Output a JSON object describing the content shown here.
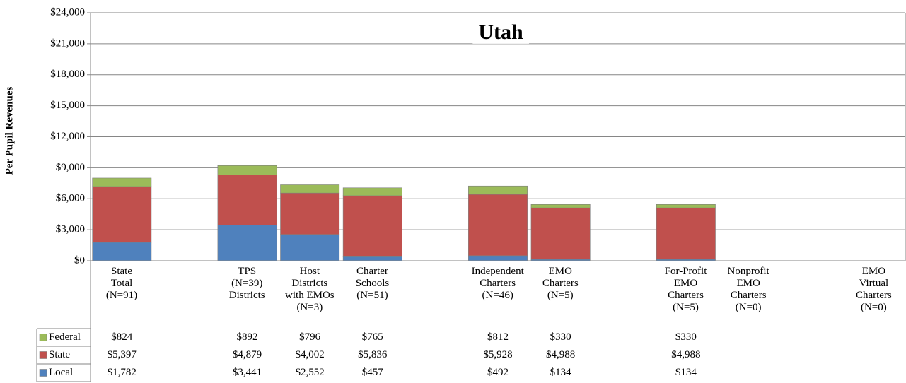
{
  "chart_data": {
    "type": "stacked_bar",
    "title": "Utah",
    "y_label": "Per Pupil Revenues",
    "categories": [
      "State\nTotal\n(N=91)",
      null,
      "TPS\n(N=39)\nDistricts",
      "Host\nDistricts\nwith EMOs\n(N=3)",
      "Charter\nSchools\n(N=51)",
      null,
      "Independent\nCharters\n(N=46)",
      "EMO\nCharters\n(N=5)",
      null,
      "For-Profit\nEMO\nCharters\n(N=5)",
      "Nonprofit\nEMO\nCharters\n(N=0)",
      null,
      "EMO\nVirtual\nCharters\n(N=0)"
    ],
    "series": [
      {
        "name": "Federal",
        "color": "#9bbb59",
        "values": [
          824,
          null,
          892,
          796,
          765,
          null,
          812,
          330,
          null,
          330,
          null,
          null,
          null
        ],
        "value_labels": [
          "$824",
          null,
          "$892",
          "$796",
          "$765",
          null,
          "$812",
          "$330",
          null,
          "$330",
          null,
          null,
          null
        ]
      },
      {
        "name": "State",
        "color": "#c0504d",
        "values": [
          5397,
          null,
          4879,
          4002,
          5836,
          null,
          5928,
          4988,
          null,
          4988,
          null,
          null,
          null
        ],
        "value_labels": [
          "$5,397",
          null,
          "$4,879",
          "$4,002",
          "$5,836",
          null,
          "$5,928",
          "$4,988",
          null,
          "$4,988",
          null,
          null,
          null
        ]
      },
      {
        "name": "Local",
        "color": "#4f81bd",
        "values": [
          1782,
          null,
          3441,
          2552,
          457,
          null,
          492,
          134,
          null,
          134,
          null,
          null,
          null
        ],
        "value_labels": [
          "$1,782",
          null,
          "$3,441",
          "$2,552",
          "$457",
          null,
          "$492",
          "$134",
          null,
          "$134",
          null,
          null,
          null
        ]
      }
    ],
    "ylim": [
      0,
      24000
    ],
    "yticks": [
      {
        "value": 0,
        "label": "$0"
      },
      {
        "value": 3000,
        "label": "$3,000"
      },
      {
        "value": 6000,
        "label": "$6,000"
      },
      {
        "value": 9000,
        "label": "$9,000"
      },
      {
        "value": 12000,
        "label": "$12,000"
      },
      {
        "value": 15000,
        "label": "$15,000"
      },
      {
        "value": 18000,
        "label": "$18,000"
      },
      {
        "value": 21000,
        "label": "$21,000"
      },
      {
        "value": 24000,
        "label": "$24,000"
      }
    ],
    "grid": true
  }
}
